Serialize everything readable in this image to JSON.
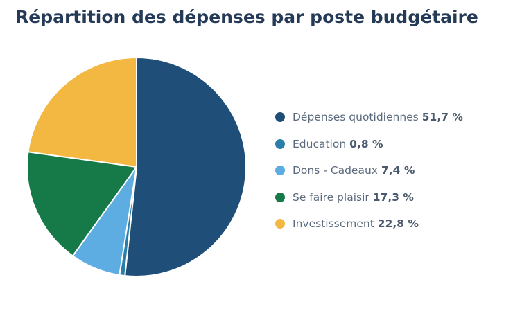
{
  "colors": {
    "title": "#243a56",
    "legend_text": "#5b6b7d",
    "legend_value": "#4a5a6c"
  },
  "chart_data": {
    "type": "pie",
    "title": "Répartition des dépenses par poste budgétaire",
    "legend_position": "right",
    "slices": [
      {
        "label": "Dépenses quotidiennes",
        "value": 51.7,
        "value_label": "51,7 %",
        "color": "#1f4e79"
      },
      {
        "label": "Education",
        "value": 0.8,
        "value_label": "0,8 %",
        "color": "#2a7fa8"
      },
      {
        "label": "Dons - Cadeaux",
        "value": 7.4,
        "value_label": "7,4 %",
        "color": "#5dade2"
      },
      {
        "label": "Se faire plaisir",
        "value": 17.3,
        "value_label": "17,3 %",
        "color": "#157a48"
      },
      {
        "label": "Investissement",
        "value": 22.8,
        "value_label": "22,8 %",
        "color": "#f2b841"
      }
    ]
  }
}
